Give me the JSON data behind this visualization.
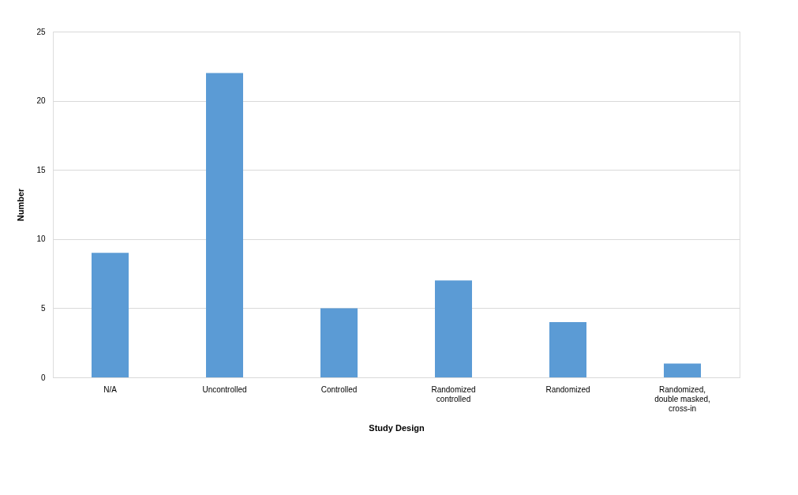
{
  "chart_data": {
    "type": "bar",
    "xlabel": "Study Design",
    "ylabel": "Number",
    "categories": [
      "N/A",
      "Uncontrolled",
      "Controlled",
      "Randomized controlled",
      "Randomized",
      "Randomized, double masked, cross-in"
    ],
    "values": [
      9,
      22,
      5,
      7,
      4,
      1
    ],
    "color": "#5b9bd5",
    "ylim": [
      0,
      25
    ],
    "yticks": [
      0,
      5,
      10,
      15,
      20,
      25
    ],
    "grid": "y"
  }
}
